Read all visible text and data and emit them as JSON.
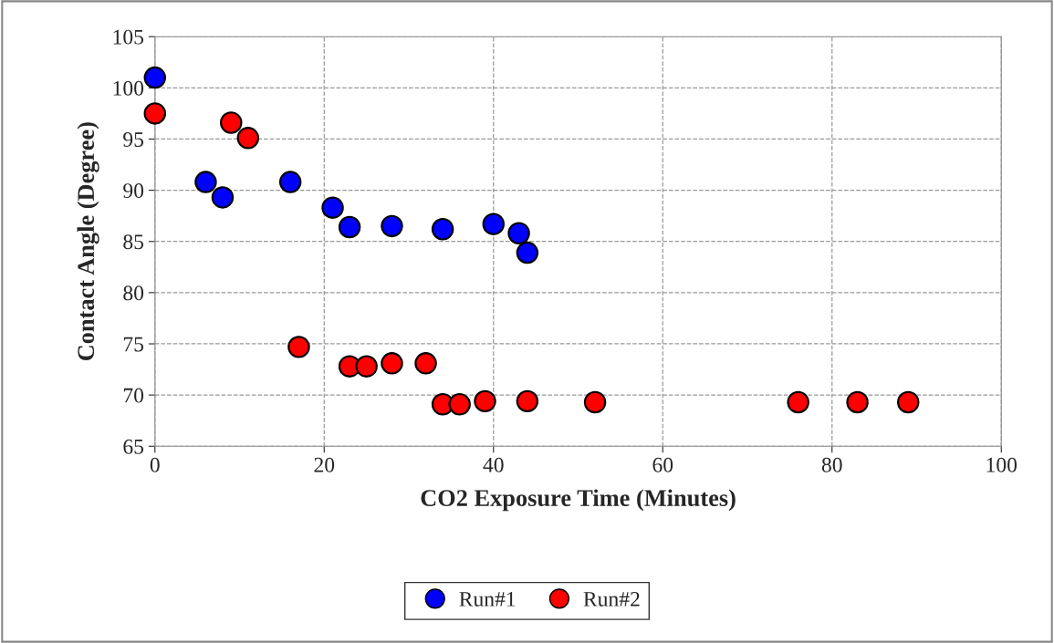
{
  "chart_data": {
    "type": "scatter",
    "xlabel": "CO2 Exposure Time (Minutes)",
    "ylabel": "Contact Angle (Degree)",
    "xlim": [
      0,
      100
    ],
    "xticks": [
      0,
      20,
      40,
      60,
      80,
      100
    ],
    "ylim": [
      65,
      105
    ],
    "yticks": [
      65,
      70,
      75,
      80,
      85,
      90,
      95,
      100,
      105
    ],
    "grid": true,
    "legend": "bottom",
    "marker": "circle",
    "series": [
      {
        "name": "Run#1",
        "color": "#0000ff",
        "x": [
          0,
          6,
          8,
          16,
          21,
          23,
          28,
          34,
          40,
          43,
          44
        ],
        "values": [
          101,
          90.8,
          89.3,
          90.8,
          88.3,
          86.4,
          86.5,
          86.2,
          86.7,
          85.8,
          83.9
        ]
      },
      {
        "name": "Run#2",
        "color": "#ff0000",
        "x": [
          0,
          9,
          11,
          17,
          23,
          25,
          28,
          32,
          34,
          36,
          39,
          44,
          52,
          76,
          83,
          89
        ],
        "values": [
          97.5,
          96.6,
          95.1,
          74.7,
          72.8,
          72.8,
          73.1,
          73.1,
          69.1,
          69.1,
          69.4,
          69.4,
          69.3,
          69.3,
          69.3,
          69.3
        ]
      }
    ]
  }
}
